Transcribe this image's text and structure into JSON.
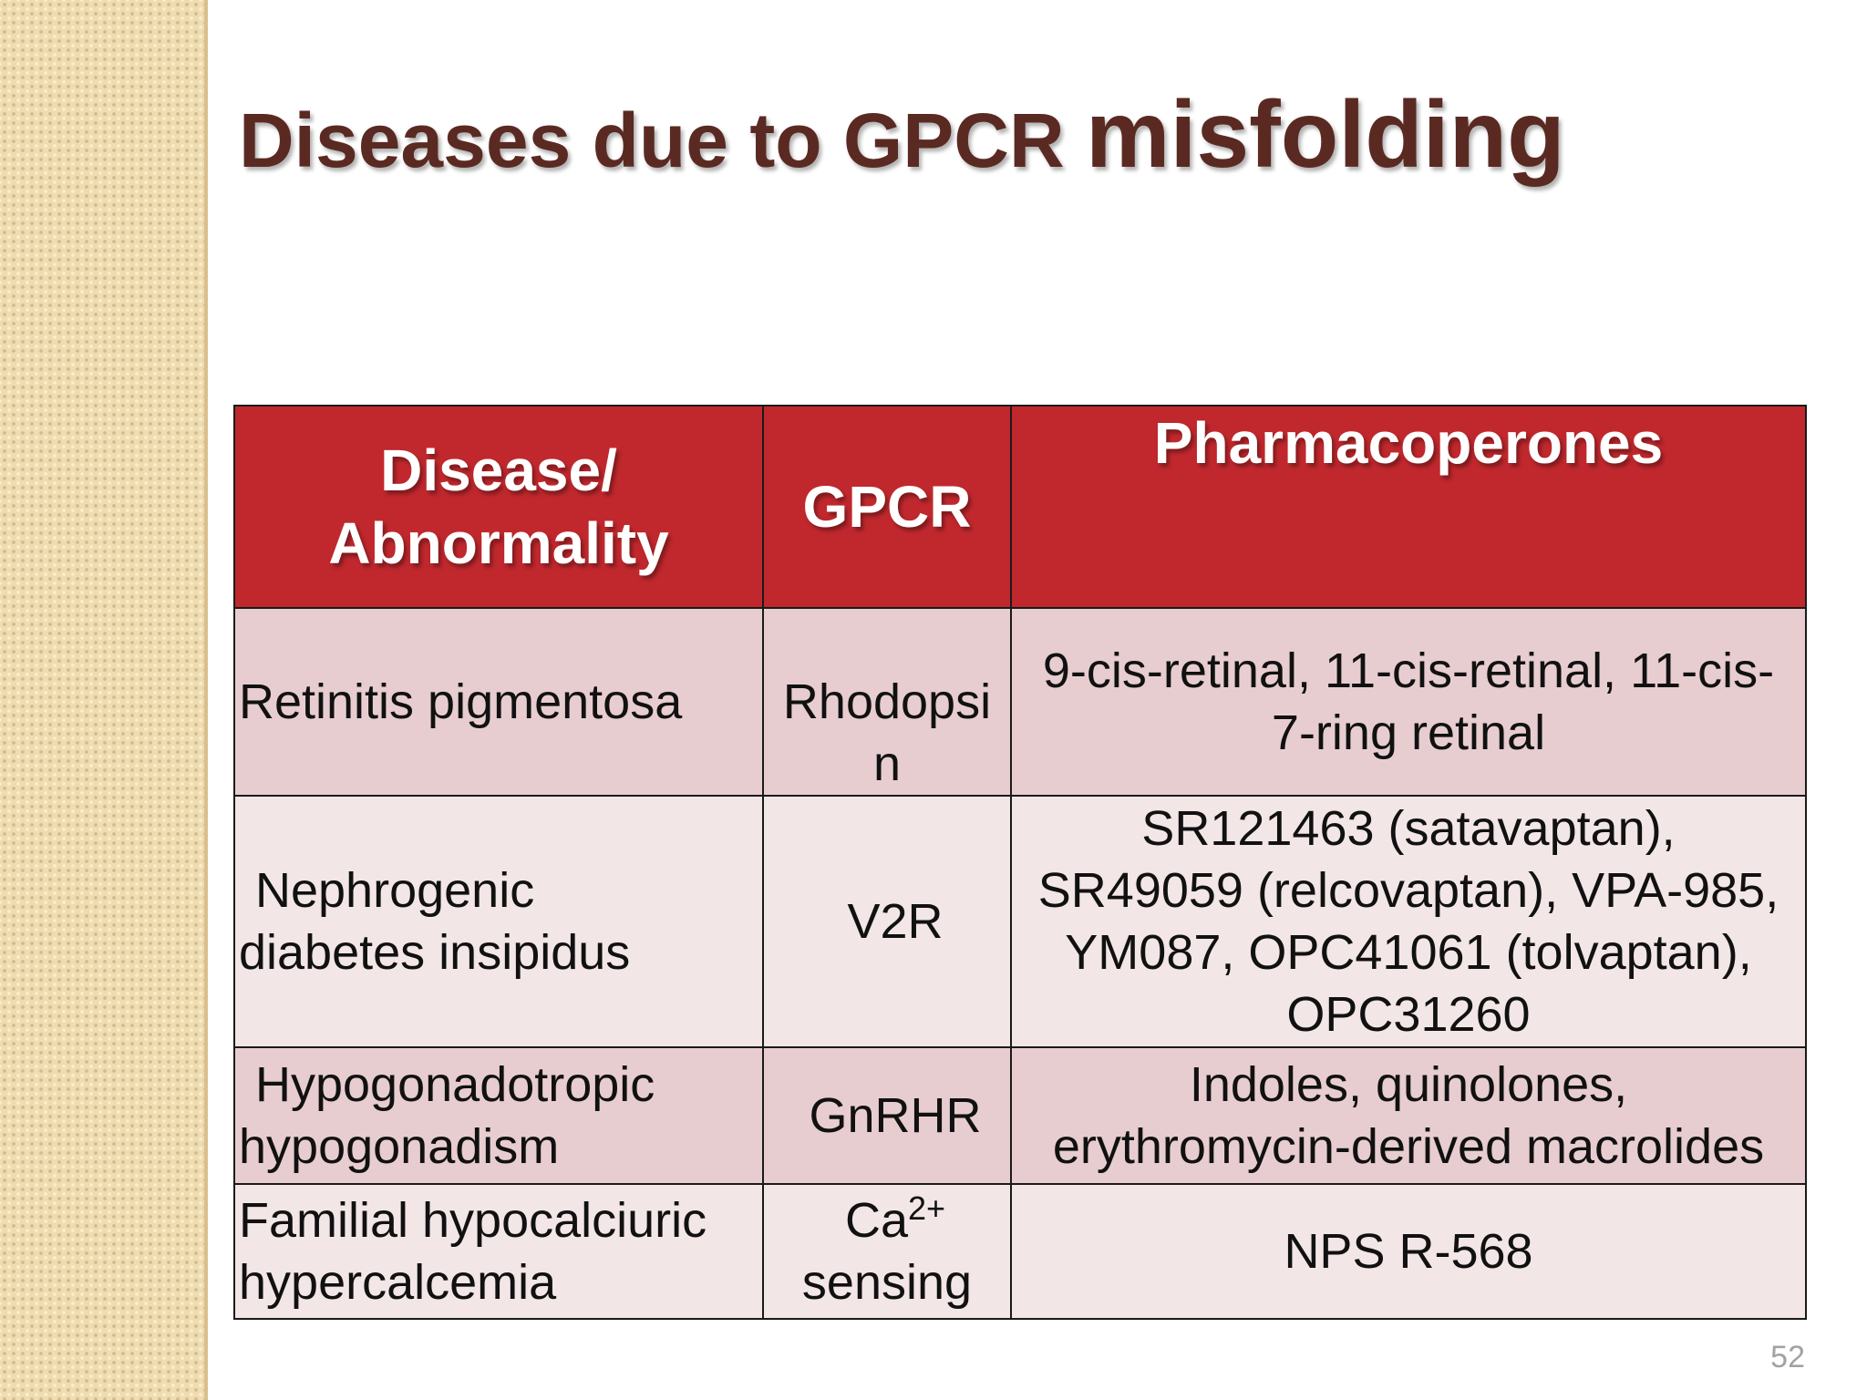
{
  "slide": {
    "title_part1": "Diseases due to GPCR ",
    "title_part2": "misfolding",
    "page_number": "52"
  },
  "table": {
    "headers": {
      "disease_line1": "Disease/",
      "disease_line2": "Abnormality",
      "gpcr": "GPCR",
      "pharmacoperones": "Pharmacoperones"
    },
    "rows": [
      {
        "disease": [
          "Retinitis pigmentosa"
        ],
        "gpcr": [
          "Rhodopsi",
          "n"
        ],
        "pharmacoperones": [
          "9-cis-retinal, 11-cis-retinal, 11-cis-",
          "7-ring retinal"
        ]
      },
      {
        "disease": [
          "Nephrogenic",
          "diabetes insipidus"
        ],
        "gpcr": [
          "V2R"
        ],
        "pharmacoperones": [
          "SR121463 (satavaptan),",
          "SR49059 (relcovaptan), VPA-985,",
          "YM087, OPC41061 (tolvaptan),",
          "OPC31260"
        ]
      },
      {
        "disease": [
          "Hypogonadotropic",
          "hypogonadism"
        ],
        "gpcr": [
          "GnRHR"
        ],
        "pharmacoperones": [
          "Indoles, quinolones,",
          "erythromycin-derived macrolides"
        ]
      },
      {
        "disease": [
          "Familial hypocalciuric",
          "hypercalcemia"
        ],
        "gpcr_base": "Ca",
        "gpcr_sup": "2+",
        "gpcr_line2": "sensing",
        "pharmacoperones": [
          "NPS R-568"
        ]
      }
    ]
  }
}
